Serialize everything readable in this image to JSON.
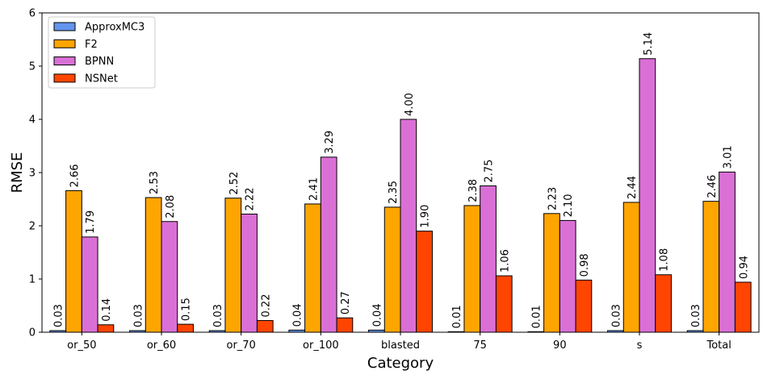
{
  "chart_data": {
    "type": "bar",
    "title": "",
    "xlabel": "Category",
    "ylabel": "RMSE",
    "ylim": [
      0,
      6
    ],
    "yticks": [
      "0",
      "1",
      "2",
      "3",
      "4",
      "5",
      "6"
    ],
    "grid": false,
    "legend_position": "top-left",
    "categories": [
      "or_50",
      "or_60",
      "or_70",
      "or_100",
      "blasted",
      "75",
      "90",
      "s",
      "Total"
    ],
    "series": [
      {
        "name": "ApproxMC3",
        "color": "#6495ED",
        "values": [
          0.03,
          0.03,
          0.03,
          0.04,
          0.04,
          0.01,
          0.01,
          0.03,
          0.03
        ],
        "labels": [
          "0.03",
          "0.03",
          "0.03",
          "0.04",
          "0.04",
          "0.01",
          "0.01",
          "0.03",
          "0.03"
        ]
      },
      {
        "name": "F2",
        "color": "#FFA500",
        "values": [
          2.66,
          2.53,
          2.52,
          2.41,
          2.35,
          2.38,
          2.23,
          2.44,
          2.46
        ],
        "labels": [
          "2.66",
          "2.53",
          "2.52",
          "2.41",
          "2.35",
          "2.38",
          "2.23",
          "2.44",
          "2.46"
        ]
      },
      {
        "name": "BPNN",
        "color": "#DA70D6",
        "values": [
          1.79,
          2.08,
          2.22,
          3.29,
          4.0,
          2.75,
          2.1,
          5.14,
          3.01
        ],
        "labels": [
          "1.79",
          "2.08",
          "2.22",
          "3.29",
          "4.00",
          "2.75",
          "2.10",
          "5.14",
          "3.01"
        ]
      },
      {
        "name": "NSNet",
        "color": "#FF4500",
        "values": [
          0.14,
          0.15,
          0.22,
          0.27,
          1.9,
          1.06,
          0.98,
          1.08,
          0.94
        ],
        "labels": [
          "0.14",
          "0.15",
          "0.22",
          "0.27",
          "1.90",
          "1.06",
          "0.98",
          "1.08",
          "0.94"
        ]
      }
    ]
  }
}
